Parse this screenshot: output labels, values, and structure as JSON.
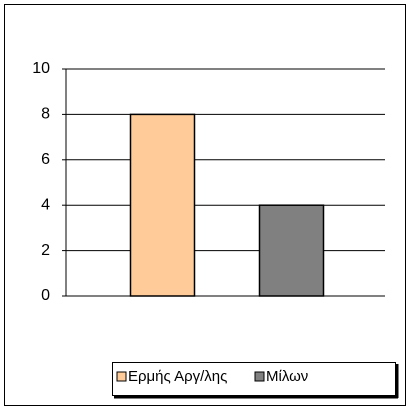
{
  "chart_data": {
    "type": "bar",
    "categories": [
      "Ερμής Αργ/λης",
      "Μίλων"
    ],
    "values": [
      8,
      4
    ],
    "colors": [
      "#ffcc99",
      "#808080"
    ],
    "ylim": [
      0,
      10
    ],
    "yticks": [
      0,
      2,
      4,
      6,
      8,
      10
    ],
    "grid": true
  }
}
